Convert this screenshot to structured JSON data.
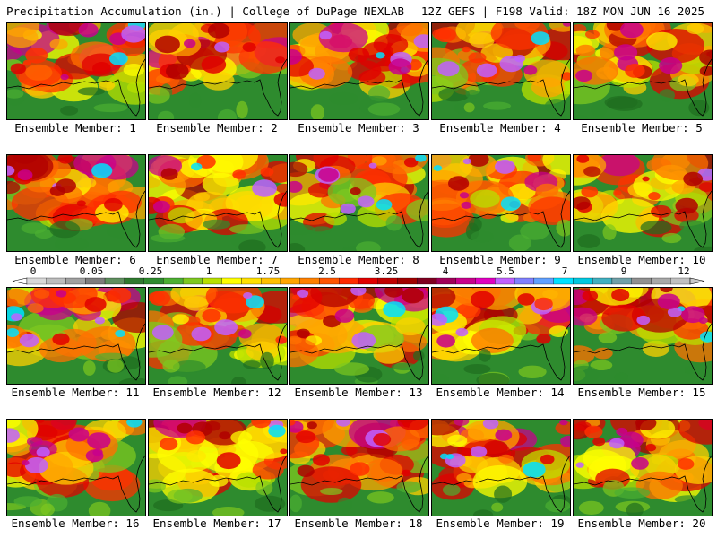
{
  "header": {
    "left": "Precipitation Accumulation (in.) | College of DuPage NEXLAB",
    "right": "12Z GEFS | F198 Valid: 18Z MON JUN 16 2025"
  },
  "members": [
    {
      "label": "Ensemble Member: 1"
    },
    {
      "label": "Ensemble Member: 2"
    },
    {
      "label": "Ensemble Member: 3"
    },
    {
      "label": "Ensemble Member: 4"
    },
    {
      "label": "Ensemble Member: 5"
    },
    {
      "label": "Ensemble Member: 6"
    },
    {
      "label": "Ensemble Member: 7"
    },
    {
      "label": "Ensemble Member: 8"
    },
    {
      "label": "Ensemble Member: 9"
    },
    {
      "label": "Ensemble Member: 10"
    },
    {
      "label": "Ensemble Member: 11"
    },
    {
      "label": "Ensemble Member: 12"
    },
    {
      "label": "Ensemble Member: 13"
    },
    {
      "label": "Ensemble Member: 14"
    },
    {
      "label": "Ensemble Member: 15"
    },
    {
      "label": "Ensemble Member: 16"
    },
    {
      "label": "Ensemble Member: 17"
    },
    {
      "label": "Ensemble Member: 18"
    },
    {
      "label": "Ensemble Member: 19"
    },
    {
      "label": "Ensemble Member: 20"
    }
  ],
  "colorbar": {
    "tick_labels": [
      "0",
      "0.05",
      "0.25",
      "1",
      "1.75",
      "2.5",
      "3.25",
      "4",
      "5.5",
      "7",
      "9",
      "12"
    ],
    "colors": [
      "#d8d8d8",
      "#bdbdbd",
      "#a0a0a0",
      "#7d7d7d",
      "#5f8f5f",
      "#2f7a2f",
      "#2e8b2e",
      "#4caf32",
      "#7ec820",
      "#b8e000",
      "#ffff00",
      "#ffe000",
      "#ffc000",
      "#ffa500",
      "#ff8000",
      "#ff5500",
      "#ff2a00",
      "#e00000",
      "#c00000",
      "#a00000",
      "#800020",
      "#a0005a",
      "#c8008c",
      "#e000c0",
      "#c060ff",
      "#8080ff",
      "#60a0ff",
      "#00e0ff",
      "#00c8e0",
      "#40b0c0",
      "#70a0a8",
      "#909090",
      "#a8a8a8",
      "#c0c0c0"
    ]
  },
  "map_colors": {
    "background": "#2e8b2e",
    "coast": "#000000"
  }
}
